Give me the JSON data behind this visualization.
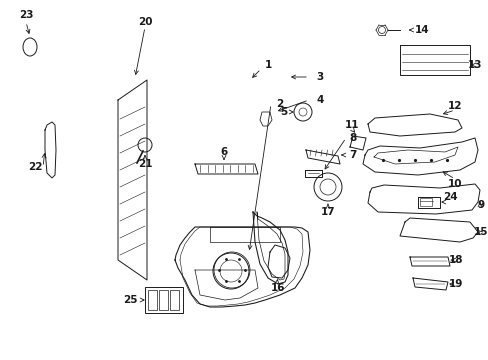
{
  "bg_color": "#ffffff",
  "line_color": "#1a1a1a",
  "fig_w": 4.89,
  "fig_h": 3.6,
  "dpi": 100
}
